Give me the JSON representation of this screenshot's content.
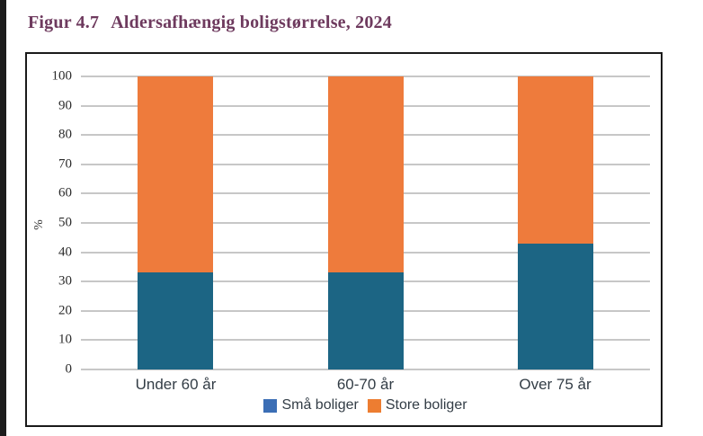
{
  "page": {
    "background": "#ffffff",
    "edge_strip_color": "#1c1c1c"
  },
  "figure": {
    "number": "Figur 4.7",
    "title": "Aldersafhængig boligstørrelse, 2024",
    "title_color": "#6e3a5e"
  },
  "chart_data": {
    "type": "bar",
    "stacked": true,
    "title": "Figur 4.7 Aldersafhængig boligstørrelse, 2024",
    "categories": [
      "Under 60 år",
      "60-70 år",
      "Over 75 år"
    ],
    "series": [
      {
        "name": "Små boliger",
        "values": [
          33,
          33,
          43
        ],
        "color": "#1c6584",
        "legend_color": "#3b6eb5"
      },
      {
        "name": "Store boliger",
        "values": [
          67,
          67,
          57
        ],
        "color": "#ee7b3c",
        "legend_color": "#ed7d31"
      }
    ],
    "xlabel": "",
    "ylabel": "%",
    "ylim": [
      0,
      100
    ],
    "ytick_step": 10,
    "grid": true,
    "gridline_color": "#8f8f8f",
    "axis_text_color": "#2b2b2b",
    "category_text_color": "#333d46",
    "frame_color": "#1a1a1a",
    "legend_position": "bottom"
  }
}
